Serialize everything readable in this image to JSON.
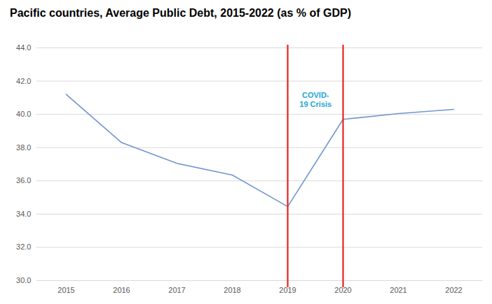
{
  "chart_data": {
    "type": "line",
    "title": "Pacific countries, Average Public Debt, 2015-2022 (as % of GDP)",
    "categories": [
      "2015",
      "2016",
      "2017",
      "2018",
      "2019",
      "2020",
      "2021",
      "2022"
    ],
    "values": [
      41.2,
      38.3,
      37.05,
      36.35,
      34.45,
      39.7,
      40.05,
      40.3
    ],
    "color": "#7196cf",
    "ylim": [
      30,
      44
    ],
    "yticks": [
      {
        "value": 30,
        "label": "30.0"
      },
      {
        "value": 32,
        "label": "32.0"
      },
      {
        "value": 34,
        "label": "34.0"
      },
      {
        "value": 36,
        "label": "36.0"
      },
      {
        "value": 38,
        "label": "38.0"
      },
      {
        "value": 40,
        "label": "40.0"
      },
      {
        "value": 42,
        "label": "42.0"
      },
      {
        "value": 44,
        "label": "44.0"
      }
    ],
    "grid": true,
    "annotations": [
      {
        "text": "COVID-19 Crisis",
        "x_start": "2019",
        "x_end": "2020",
        "color": "#e8231f"
      }
    ]
  }
}
